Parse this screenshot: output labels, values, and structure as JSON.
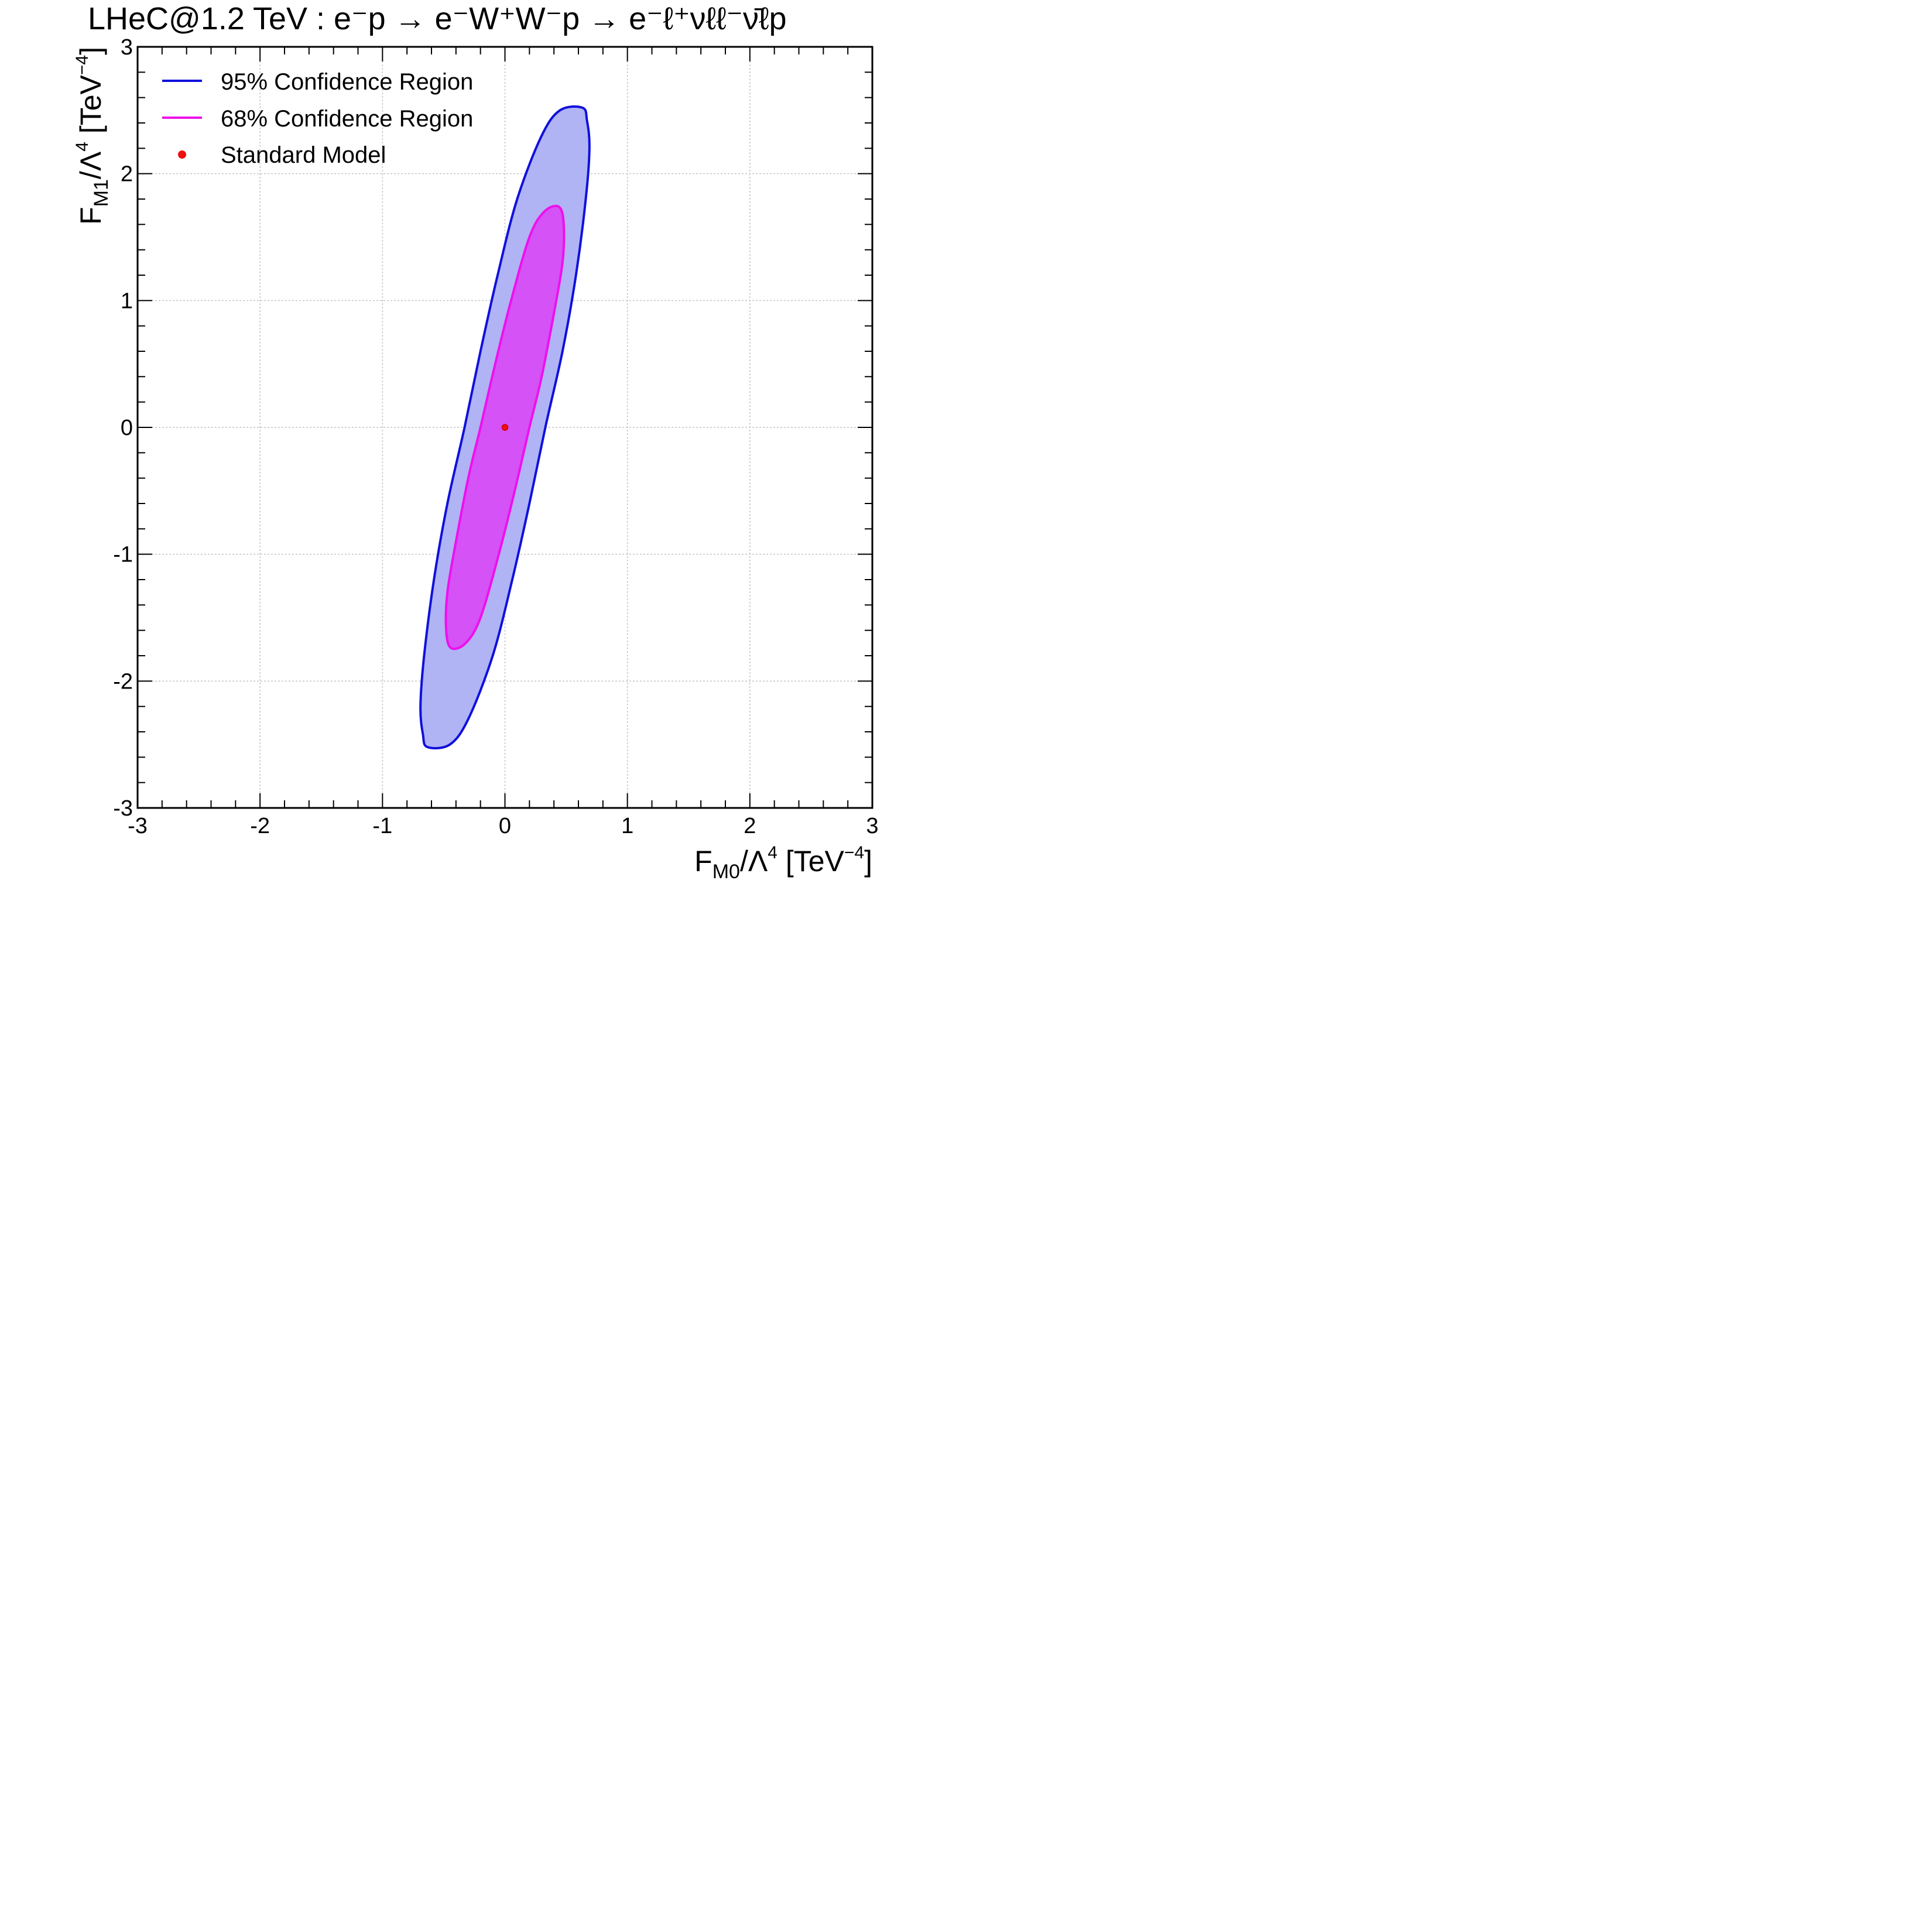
{
  "chart_data": {
    "type": "contour",
    "title": "LHeC@1.2 TeV : e⁻p → e⁻W⁺W⁻p → e⁻ℓ⁺νℓℓ⁻ν̄ℓp",
    "xlabel": {
      "main": "F",
      "sub": "M0",
      "mid": "/Λ",
      "sup1": "4",
      "unit": " [TeV",
      "sup2": "−4",
      "end": "]"
    },
    "ylabel": {
      "main": "F",
      "sub": "M1",
      "mid": "/Λ",
      "sup1": "4",
      "unit": " [TeV",
      "sup2": "−4",
      "end": "]"
    },
    "xlim": [
      -3,
      3
    ],
    "ylim": [
      -3,
      3
    ],
    "xticks": [
      -3,
      -2,
      -1,
      0,
      1,
      2,
      3
    ],
    "yticks": [
      -3,
      -2,
      -1,
      0,
      1,
      2,
      3
    ],
    "xtick_labels": [
      "-3",
      "-2",
      "-1",
      "0",
      "1",
      "2",
      "3"
    ],
    "ytick_labels": [
      "-3",
      "-2",
      "-1",
      "0",
      "1",
      "2",
      "3"
    ],
    "grid": true,
    "legend_position": "top-left",
    "series": [
      {
        "name": "95% Confidence Region",
        "kind": "ellipse",
        "line_color": "#1010dd",
        "fill_color": "#b0b4f4",
        "points": [
          [
            0.633,
            2.52
          ],
          [
            0.67,
            2.42
          ],
          [
            0.69,
            2.2
          ],
          [
            0.66,
            1.8
          ],
          [
            0.58,
            1.2
          ],
          [
            0.47,
            0.6
          ],
          [
            0.33,
            0.0
          ],
          [
            0.2,
            -0.6
          ],
          [
            0.06,
            -1.2
          ],
          [
            -0.1,
            -1.8
          ],
          [
            -0.3,
            -2.3
          ],
          [
            -0.45,
            -2.5
          ],
          [
            -0.633,
            -2.52
          ],
          [
            -0.67,
            -2.42
          ],
          [
            -0.69,
            -2.2
          ],
          [
            -0.66,
            -1.8
          ],
          [
            -0.58,
            -1.2
          ],
          [
            -0.47,
            -0.6
          ],
          [
            -0.33,
            0.0
          ],
          [
            -0.2,
            0.6
          ],
          [
            -0.06,
            1.2
          ],
          [
            0.1,
            1.8
          ],
          [
            0.3,
            2.3
          ],
          [
            0.45,
            2.5
          ]
        ]
      },
      {
        "name": "68% Confidence Region",
        "kind": "ellipse",
        "line_color": "#ee10ee",
        "fill_color": "#d452f6",
        "points": [
          [
            0.44,
            1.74
          ],
          [
            0.48,
            1.6
          ],
          [
            0.47,
            1.3
          ],
          [
            0.4,
            0.9
          ],
          [
            0.3,
            0.4
          ],
          [
            0.2,
            0.0
          ],
          [
            0.08,
            -0.5
          ],
          [
            -0.05,
            -1.0
          ],
          [
            -0.2,
            -1.5
          ],
          [
            -0.32,
            -1.7
          ],
          [
            -0.44,
            -1.74
          ],
          [
            -0.48,
            -1.6
          ],
          [
            -0.47,
            -1.3
          ],
          [
            -0.4,
            -0.9
          ],
          [
            -0.3,
            -0.4
          ],
          [
            -0.2,
            0.0
          ],
          [
            -0.08,
            0.5
          ],
          [
            0.05,
            1.0
          ],
          [
            0.2,
            1.5
          ],
          [
            0.32,
            1.7
          ]
        ]
      },
      {
        "name": "Standard Model",
        "kind": "marker",
        "color": "#ee1010",
        "points": [
          [
            0,
            0
          ]
        ]
      }
    ]
  }
}
